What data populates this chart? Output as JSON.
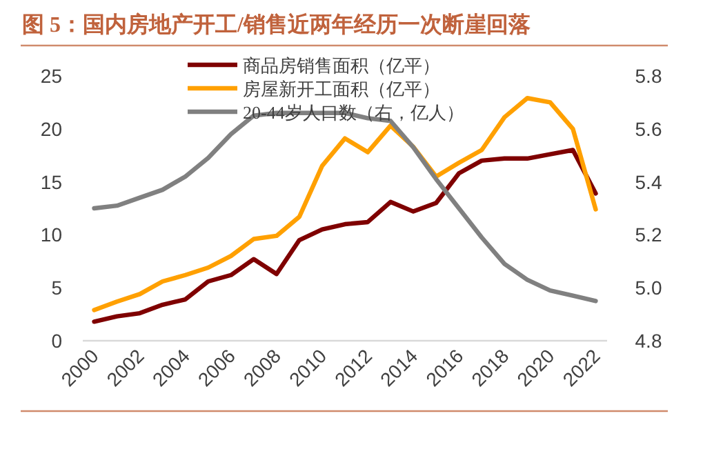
{
  "chart_data": {
    "type": "line",
    "title": "图 5：国内房地产开工/销售近两年经历一次断崖回落",
    "x": [
      2000,
      2001,
      2002,
      2003,
      2004,
      2005,
      2006,
      2007,
      2008,
      2009,
      2010,
      2011,
      2012,
      2013,
      2014,
      2015,
      2016,
      2017,
      2018,
      2019,
      2020,
      2021,
      2022
    ],
    "series": [
      {
        "name": "商品房销售面积（亿平）",
        "color": "#7f0000",
        "values": [
          1.8,
          2.3,
          2.6,
          3.4,
          3.9,
          5.6,
          6.2,
          7.7,
          6.3,
          9.5,
          10.5,
          11.0,
          11.2,
          13.1,
          12.2,
          13.0,
          15.8,
          17.0,
          17.2,
          17.2,
          17.6,
          18.0,
          13.9
        ]
      },
      {
        "name": "房屋新开工面积（亿平）",
        "color": "#ffa000",
        "values": [
          2.9,
          3.7,
          4.4,
          5.6,
          6.2,
          6.9,
          8.0,
          9.6,
          9.9,
          11.7,
          16.5,
          19.1,
          17.8,
          20.3,
          18.3,
          15.5,
          16.8,
          18.0,
          21.1,
          22.9,
          22.5,
          20.0,
          12.4
        ]
      },
      {
        "name": "20-44岁人口数（右，亿人）",
        "color": "#808080",
        "axis": "y2",
        "values": [
          5.3,
          5.31,
          5.34,
          5.37,
          5.42,
          5.49,
          5.58,
          5.65,
          5.66,
          5.66,
          5.66,
          5.66,
          5.64,
          5.63,
          5.53,
          5.41,
          5.3,
          5.19,
          5.09,
          5.03,
          4.99,
          4.97,
          4.95
        ]
      }
    ],
    "xlim": [
      1999.5,
      2022.5
    ],
    "xticks": [
      2000,
      2002,
      2004,
      2006,
      2008,
      2010,
      2012,
      2014,
      2016,
      2018,
      2020,
      2022
    ],
    "ylim": [
      0,
      25
    ],
    "yticks": [
      0,
      5,
      10,
      15,
      20,
      25
    ],
    "y2lim": [
      4.8,
      5.8
    ],
    "y2ticks": [
      {
        "value": 4.8,
        "label": "4.8"
      },
      {
        "value": 5.0,
        "label": "5.0"
      },
      {
        "value": 5.2,
        "label": "5.2"
      },
      {
        "value": 5.4,
        "label": "5.4"
      },
      {
        "value": 5.6,
        "label": "5.6"
      },
      {
        "value": 5.8,
        "label": "5.8"
      }
    ],
    "legend": "top",
    "grid": false,
    "marker": "none",
    "line_style": "solid"
  }
}
